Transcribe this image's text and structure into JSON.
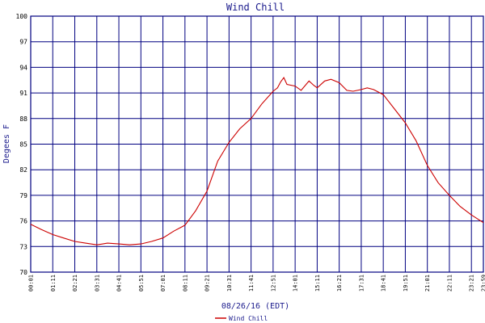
{
  "chart_data": {
    "type": "line",
    "title": "Wind Chill",
    "ylabel": "Degees F",
    "xlabel": "08/26/16 (EDT)",
    "ylim": [
      70,
      100
    ],
    "yticks": [
      70,
      73,
      76,
      79,
      82,
      85,
      88,
      91,
      94,
      97,
      100
    ],
    "xlim": [
      "00:01",
      "23:59"
    ],
    "xticks": [
      "00:01",
      "01:11",
      "02:21",
      "03:31",
      "04:41",
      "05:51",
      "07:01",
      "08:11",
      "09:21",
      "10:31",
      "11:41",
      "12:51",
      "14:01",
      "15:11",
      "16:21",
      "17:31",
      "18:41",
      "19:51",
      "21:01",
      "22:11",
      "23:21",
      "23:59"
    ],
    "grid": true,
    "legend_position": "bottom-center",
    "series": [
      {
        "name": "Wind Chill",
        "color": "#cc0000",
        "x": [
          "00:01",
          "00:35",
          "01:11",
          "01:45",
          "02:21",
          "02:55",
          "03:31",
          "04:05",
          "04:41",
          "05:15",
          "05:51",
          "06:25",
          "07:01",
          "07:35",
          "08:11",
          "08:45",
          "09:21",
          "09:55",
          "10:31",
          "11:05",
          "11:41",
          "12:15",
          "12:51",
          "13:05",
          "13:15",
          "13:25",
          "13:35",
          "14:01",
          "14:20",
          "14:45",
          "15:00",
          "15:11",
          "15:35",
          "15:55",
          "16:21",
          "16:45",
          "17:05",
          "17:31",
          "17:50",
          "18:10",
          "18:41",
          "19:15",
          "19:51",
          "20:25",
          "21:01",
          "21:35",
          "22:11",
          "22:45",
          "23:21",
          "23:59"
        ],
        "y": [
          75.6,
          75.0,
          74.4,
          74.0,
          73.6,
          73.4,
          73.2,
          73.4,
          73.3,
          73.2,
          73.3,
          73.6,
          74.0,
          74.8,
          75.5,
          77.2,
          79.5,
          83.0,
          85.2,
          86.8,
          88.0,
          89.7,
          91.2,
          91.6,
          92.3,
          92.8,
          92.0,
          91.8,
          91.3,
          92.4,
          91.9,
          91.6,
          92.4,
          92.6,
          92.2,
          91.3,
          91.2,
          91.4,
          91.6,
          91.4,
          90.8,
          89.2,
          87.5,
          85.4,
          82.5,
          80.5,
          79.0,
          77.7,
          76.7,
          75.8
        ]
      }
    ]
  },
  "legend": {
    "label": "Wind Chill"
  }
}
